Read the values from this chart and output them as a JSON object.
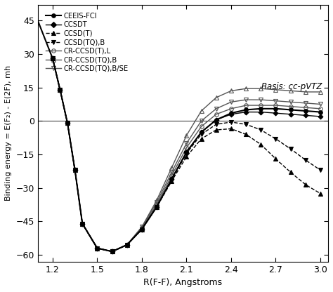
{
  "xlabel": "R(F-F), Angstroms",
  "ylabel": "Binding energy = E(F₂) - E(2F), mh",
  "basis_label": "Basis: cc-pVTZ",
  "xlim": [
    1.1,
    3.05
  ],
  "ylim": [
    -63,
    52
  ],
  "xticks": [
    1.2,
    1.5,
    1.8,
    2.1,
    2.4,
    2.7,
    3.0
  ],
  "yticks": [
    -60,
    -45,
    -30,
    -15,
    0,
    15,
    30,
    45
  ],
  "background_color": "#ffffff",
  "series": {
    "CEEIS-FCI": {
      "x": [
        1.1,
        1.2,
        1.25,
        1.3,
        1.35,
        1.4,
        1.5,
        1.6,
        1.7,
        1.8,
        1.9,
        2.0,
        2.1,
        2.2,
        2.3,
        2.4,
        2.5,
        2.6,
        2.7,
        2.8,
        2.9,
        3.0
      ],
      "y": [
        45.0,
        28.0,
        14.0,
        -1.0,
        -22.0,
        -46.0,
        -57.0,
        -58.5,
        -55.5,
        -48.5,
        -38.5,
        -26.0,
        -14.0,
        -5.0,
        0.5,
        3.5,
        5.0,
        5.5,
        5.5,
        5.0,
        4.5,
        4.0
      ],
      "marker": "o",
      "markersize": 4,
      "color": "#000000",
      "linestyle": "-",
      "linewidth": 1.5,
      "fillstyle": "full",
      "zorder": 10
    },
    "CCSDT": {
      "x": [
        1.2,
        1.25,
        1.3,
        1.35,
        1.4,
        1.5,
        1.6,
        1.7,
        1.8,
        1.9,
        2.0,
        2.1,
        2.2,
        2.3,
        2.4,
        2.5,
        2.6,
        2.7,
        2.8,
        2.9,
        3.0
      ],
      "y": [
        28.0,
        14.0,
        -1.0,
        -22.0,
        -46.0,
        -57.0,
        -58.5,
        -55.5,
        -48.5,
        -38.5,
        -26.0,
        -14.0,
        -5.0,
        0.5,
        3.0,
        4.0,
        4.0,
        3.5,
        3.0,
        2.5,
        2.0
      ],
      "marker": "D",
      "markersize": 3.5,
      "color": "#000000",
      "linestyle": "-",
      "linewidth": 1.0,
      "fillstyle": "full",
      "zorder": 9
    },
    "CCSD(T)": {
      "x": [
        1.2,
        1.25,
        1.3,
        1.35,
        1.4,
        1.5,
        1.6,
        1.7,
        1.8,
        1.9,
        2.0,
        2.1,
        2.2,
        2.3,
        2.4,
        2.5,
        2.6,
        2.7,
        2.8,
        2.9,
        3.0
      ],
      "y": [
        28.0,
        14.0,
        -1.0,
        -22.0,
        -46.0,
        -57.0,
        -58.5,
        -55.5,
        -48.5,
        -38.5,
        -27.0,
        -16.0,
        -8.0,
        -4.0,
        -3.5,
        -6.0,
        -10.5,
        -17.0,
        -23.0,
        -28.5,
        -32.5
      ],
      "marker": "^",
      "markersize": 4,
      "color": "#000000",
      "linestyle": "--",
      "linewidth": 1.0,
      "fillstyle": "full",
      "zorder": 8
    },
    "CCSD(TQ),B": {
      "x": [
        1.2,
        1.25,
        1.3,
        1.35,
        1.4,
        1.5,
        1.6,
        1.7,
        1.8,
        1.9,
        2.0,
        2.1,
        2.2,
        2.3,
        2.4,
        2.5,
        2.6,
        2.7,
        2.8,
        2.9,
        3.0
      ],
      "y": [
        28.0,
        14.0,
        -1.0,
        -22.0,
        -46.0,
        -57.0,
        -58.5,
        -55.5,
        -48.5,
        -38.5,
        -26.5,
        -14.5,
        -6.0,
        -1.5,
        -0.5,
        -1.5,
        -4.0,
        -8.0,
        -12.5,
        -17.5,
        -22.0
      ],
      "marker": "v",
      "markersize": 4,
      "color": "#000000",
      "linestyle": "--",
      "linewidth": 1.0,
      "fillstyle": "full",
      "zorder": 7
    },
    "CR-CCSD(T),L": {
      "x": [
        1.2,
        1.25,
        1.3,
        1.35,
        1.4,
        1.5,
        1.6,
        1.7,
        1.8,
        1.9,
        2.0,
        2.1,
        2.2,
        2.3,
        2.4,
        2.5,
        2.6,
        2.7,
        2.8,
        2.9,
        3.0
      ],
      "y": [
        28.0,
        14.0,
        -1.0,
        -22.0,
        -46.0,
        -57.0,
        -58.5,
        -55.5,
        -48.0,
        -37.5,
        -24.5,
        -12.0,
        -2.5,
        3.0,
        5.5,
        7.0,
        7.0,
        7.0,
        6.5,
        6.0,
        5.5
      ],
      "marker": "o",
      "markersize": 4,
      "color": "#555555",
      "linestyle": "-",
      "linewidth": 1.0,
      "fillstyle": "none",
      "zorder": 6
    },
    "CR-CCSD(TQ),B": {
      "x": [
        1.2,
        1.25,
        1.3,
        1.35,
        1.4,
        1.5,
        1.6,
        1.7,
        1.8,
        1.9,
        2.0,
        2.1,
        2.2,
        2.3,
        2.4,
        2.5,
        2.6,
        2.7,
        2.8,
        2.9,
        3.0
      ],
      "y": [
        28.0,
        14.0,
        -1.0,
        -22.0,
        -46.0,
        -57.0,
        -58.5,
        -55.5,
        -47.5,
        -35.5,
        -21.0,
        -6.5,
        4.5,
        10.5,
        13.5,
        14.5,
        14.5,
        14.0,
        13.5,
        13.0,
        13.0
      ],
      "marker": "^",
      "markersize": 4,
      "color": "#555555",
      "linestyle": "-",
      "linewidth": 1.0,
      "fillstyle": "none",
      "zorder": 5
    },
    "CR-CCSD(TQ),B/SE": {
      "x": [
        1.2,
        1.25,
        1.3,
        1.35,
        1.4,
        1.5,
        1.6,
        1.7,
        1.8,
        1.9,
        2.0,
        2.1,
        2.2,
        2.3,
        2.4,
        2.5,
        2.6,
        2.7,
        2.8,
        2.9,
        3.0
      ],
      "y": [
        28.0,
        14.0,
        -1.0,
        -22.0,
        -46.0,
        -57.0,
        -58.5,
        -55.5,
        -47.5,
        -36.5,
        -23.0,
        -10.0,
        0.0,
        5.5,
        8.5,
        9.5,
        9.5,
        9.0,
        8.5,
        8.0,
        7.5
      ],
      "marker": "v",
      "markersize": 4,
      "color": "#555555",
      "linestyle": "-",
      "linewidth": 1.0,
      "fillstyle": "none",
      "zorder": 4
    }
  }
}
